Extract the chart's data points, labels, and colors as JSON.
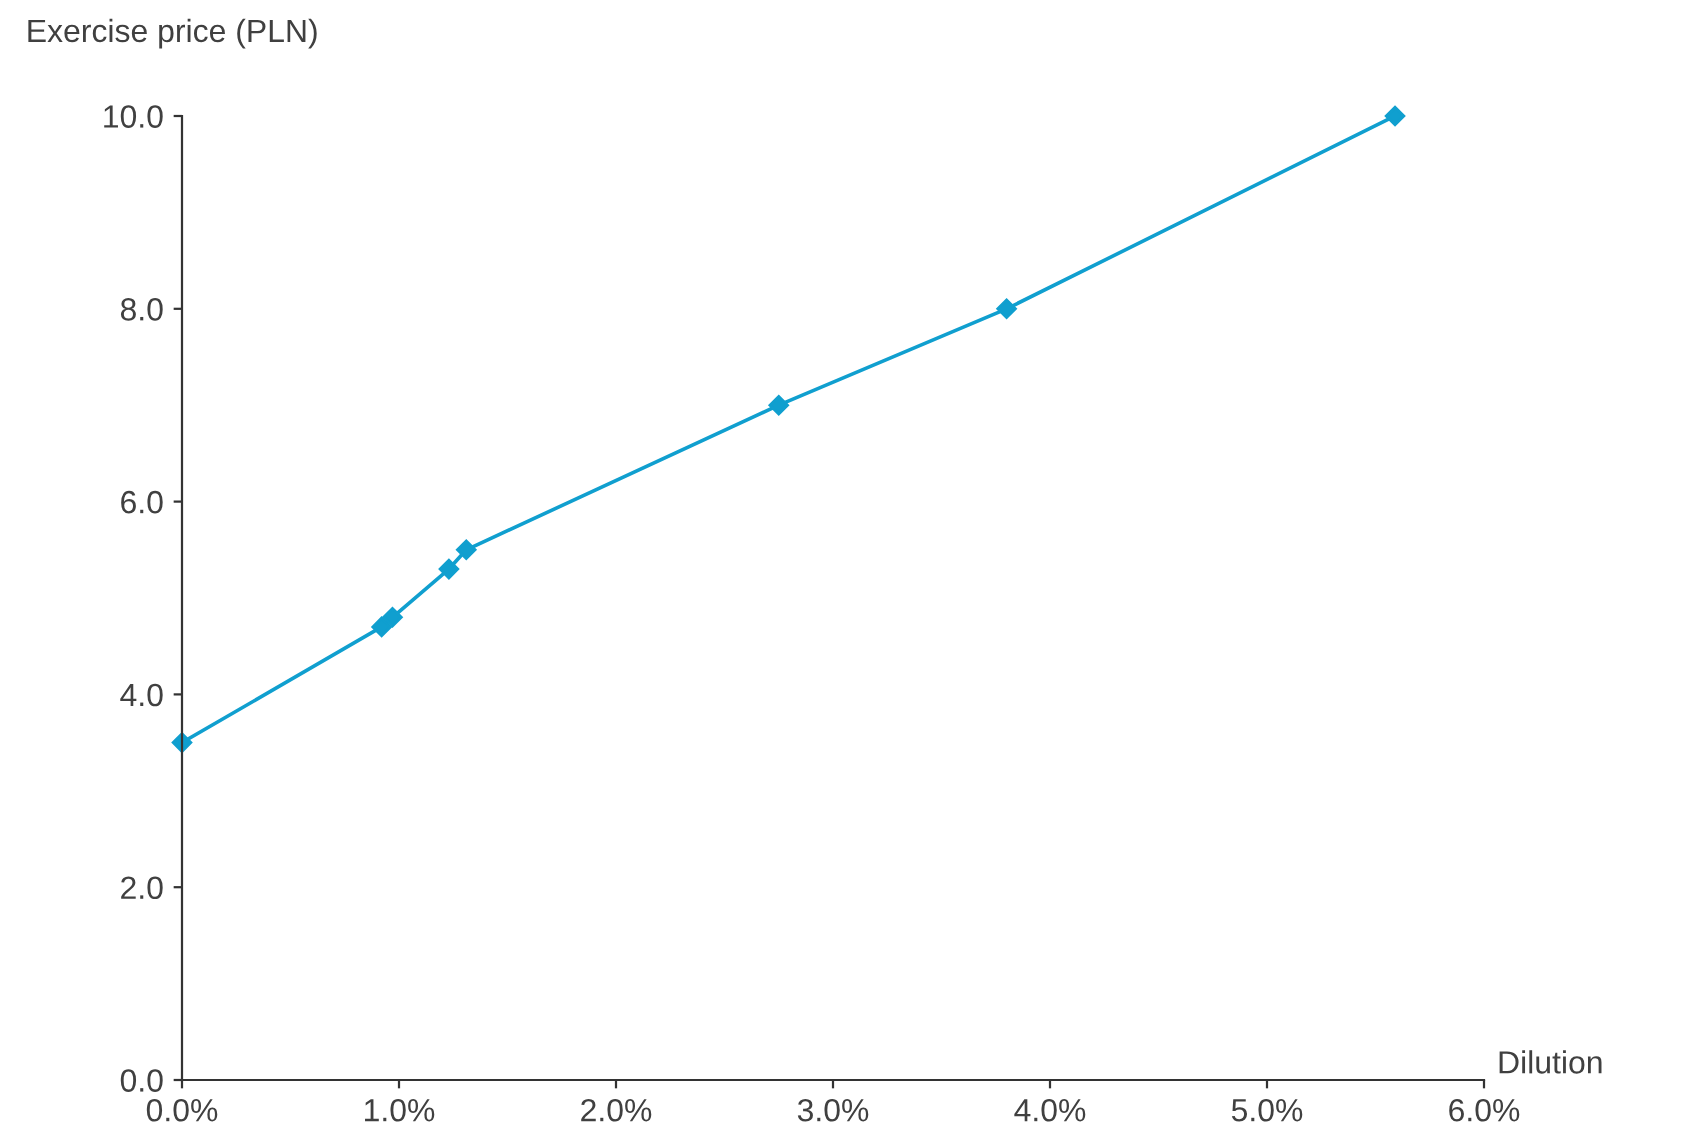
{
  "chart_data": {
    "type": "line",
    "xlabel": "Dilution",
    "ylabel": "Exercise price (PLN)",
    "x": [
      0.0,
      0.92,
      0.97,
      1.23,
      1.31,
      2.75,
      3.8,
      5.59
    ],
    "series": [
      {
        "color": "#109fcf",
        "values": [
          3.5,
          4.7,
          4.8,
          5.3,
          5.5,
          7.0,
          8.0,
          10.0
        ]
      }
    ],
    "xlim": [
      0,
      6
    ],
    "ylim": [
      0,
      10
    ],
    "xticks": [
      {
        "value": 0,
        "label": "0.0%"
      },
      {
        "value": 1,
        "label": "1.0%"
      },
      {
        "value": 2,
        "label": "2.0%"
      },
      {
        "value": 3,
        "label": "3.0%"
      },
      {
        "value": 4,
        "label": "4.0%"
      },
      {
        "value": 5,
        "label": "5.0%"
      },
      {
        "value": 6,
        "label": "6.0%"
      }
    ],
    "yticks": [
      {
        "value": 0,
        "label": "0.0"
      },
      {
        "value": 2,
        "label": "2.0"
      },
      {
        "value": 4,
        "label": "4.0"
      },
      {
        "value": 6,
        "label": "6.0"
      },
      {
        "value": 8,
        "label": "8.0"
      },
      {
        "value": 10,
        "label": "10.0"
      }
    ],
    "marker": "diamond",
    "line_style": "solid",
    "grid": false,
    "legend": false
  }
}
